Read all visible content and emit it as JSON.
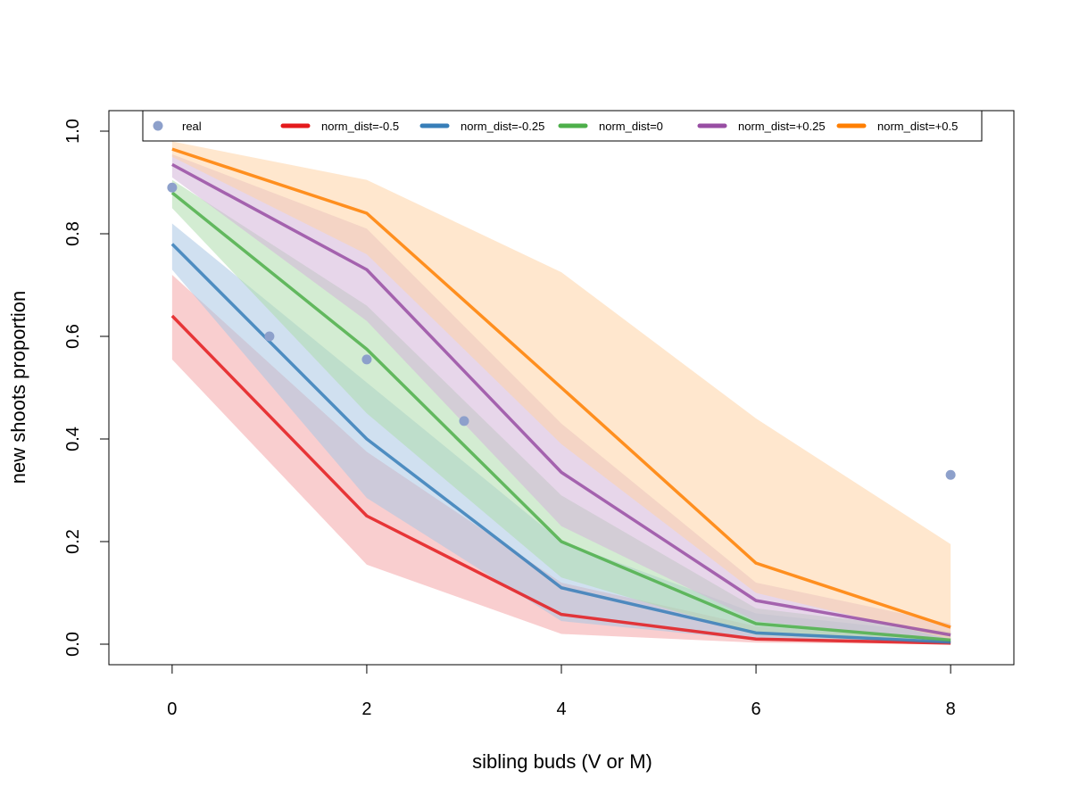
{
  "chart_data": {
    "type": "line",
    "xlabel": "sibling buds (V or M)",
    "ylabel": "new shoots proportion",
    "xlim": [
      -0.65,
      8.65
    ],
    "ylim": [
      -0.04,
      1.04
    ],
    "xticks": [
      0,
      2,
      4,
      6,
      8
    ],
    "yticks": [
      0.0,
      0.2,
      0.4,
      0.6,
      0.8,
      1.0
    ],
    "xtick_labels": [
      "0",
      "2",
      "4",
      "6",
      "8"
    ],
    "ytick_labels": [
      "0.0",
      "0.2",
      "0.4",
      "0.6",
      "0.8",
      "1.0"
    ],
    "legend_position": "top",
    "real": {
      "name": "real",
      "color": "#8DA0CB",
      "x": [
        0,
        1,
        2,
        3,
        8
      ],
      "y": [
        0.89,
        0.6,
        0.555,
        0.435,
        0.33
      ]
    },
    "x": [
      0,
      2,
      4,
      6,
      8
    ],
    "series": [
      {
        "name": "norm_dist=-0.5",
        "color": "#E41A1C",
        "band_color": "#F4A6A8",
        "y": [
          0.64,
          0.25,
          0.058,
          0.01,
          0.002
        ],
        "lower": [
          0.555,
          0.155,
          0.02,
          0.003,
          0.0
        ],
        "upper": [
          0.72,
          0.375,
          0.12,
          0.035,
          0.01
        ]
      },
      {
        "name": "norm_dist=-0.25",
        "color": "#377EB8",
        "band_color": "#A9C7E3",
        "y": [
          0.78,
          0.4,
          0.11,
          0.022,
          0.004
        ],
        "lower": [
          0.73,
          0.285,
          0.045,
          0.008,
          0.0
        ],
        "upper": [
          0.82,
          0.51,
          0.2,
          0.06,
          0.02
        ]
      },
      {
        "name": "norm_dist=0",
        "color": "#4DAF4A",
        "band_color": "#AFDCAD",
        "y": [
          0.88,
          0.575,
          0.2,
          0.04,
          0.008
        ],
        "lower": [
          0.85,
          0.45,
          0.13,
          0.018,
          0.002
        ],
        "upper": [
          0.905,
          0.66,
          0.29,
          0.07,
          0.025
        ]
      },
      {
        "name": "norm_dist=+0.25",
        "color": "#984EA3",
        "band_color": "#D3B4D9",
        "y": [
          0.935,
          0.73,
          0.335,
          0.085,
          0.018
        ],
        "lower": [
          0.91,
          0.63,
          0.23,
          0.045,
          0.005
        ],
        "upper": [
          0.955,
          0.81,
          0.43,
          0.12,
          0.04
        ]
      },
      {
        "name": "norm_dist=+0.5",
        "color": "#FF7F00",
        "band_color": "#FFD3A6",
        "y": [
          0.965,
          0.84,
          0.5,
          0.158,
          0.033
        ],
        "lower": [
          0.95,
          0.76,
          0.39,
          0.1,
          0.01
        ],
        "upper": [
          0.98,
          0.905,
          0.725,
          0.44,
          0.195
        ]
      }
    ]
  }
}
